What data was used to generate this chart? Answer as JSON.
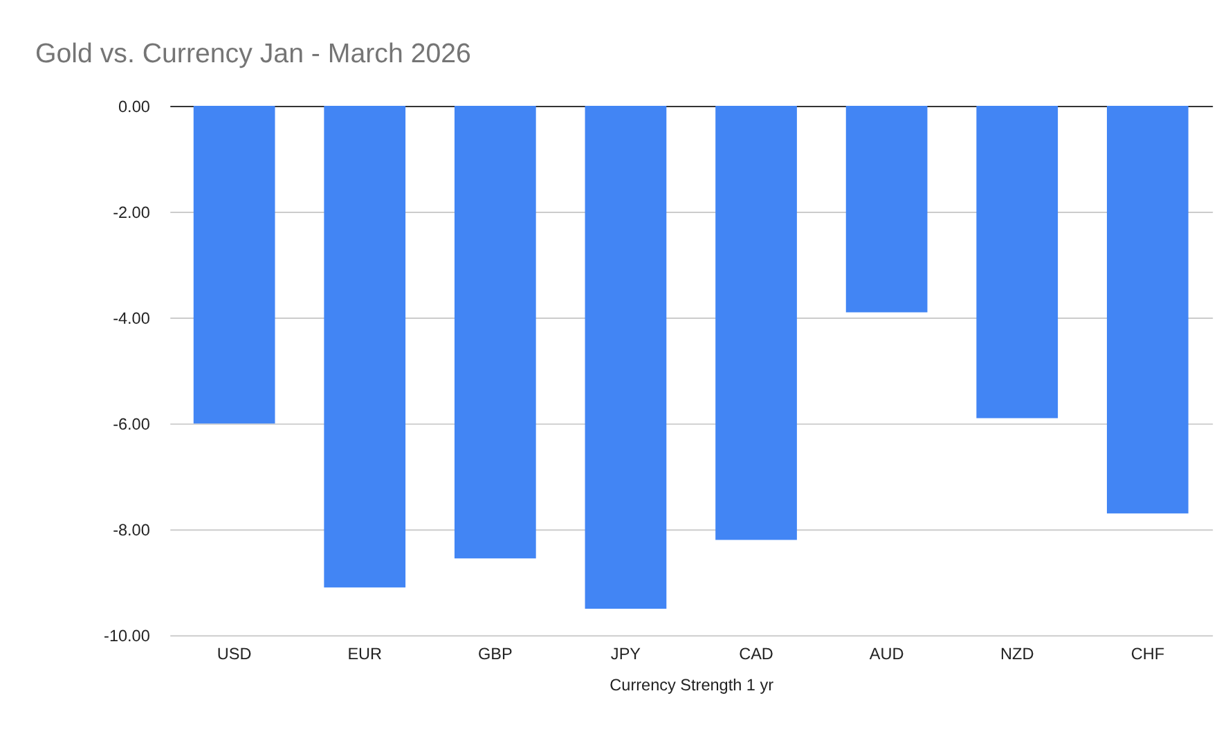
{
  "chart_data": {
    "type": "bar",
    "title": "Gold vs. Currency Jan - March 2026",
    "xlabel": "Currency Strength 1 yr",
    "categories": [
      "USD",
      "EUR",
      "GBP",
      "JPY",
      "CAD",
      "AUD",
      "NZD",
      "CHF"
    ],
    "series": [
      {
        "color": "#4285f4",
        "values": [
          -6.0,
          -9.1,
          -8.55,
          -9.5,
          -8.2,
          -3.9,
          -5.9,
          -7.7
        ]
      }
    ],
    "ylim": [
      -10,
      0
    ],
    "yticks": [
      {
        "value": -10,
        "label": "-10.00"
      },
      {
        "value": -8,
        "label": "-8.00"
      },
      {
        "value": -6,
        "label": "-6.00"
      },
      {
        "value": -4,
        "label": "-4.00"
      },
      {
        "value": -2,
        "label": "-2.00"
      },
      {
        "value": 0,
        "label": "0.00"
      }
    ],
    "grid": "y"
  }
}
